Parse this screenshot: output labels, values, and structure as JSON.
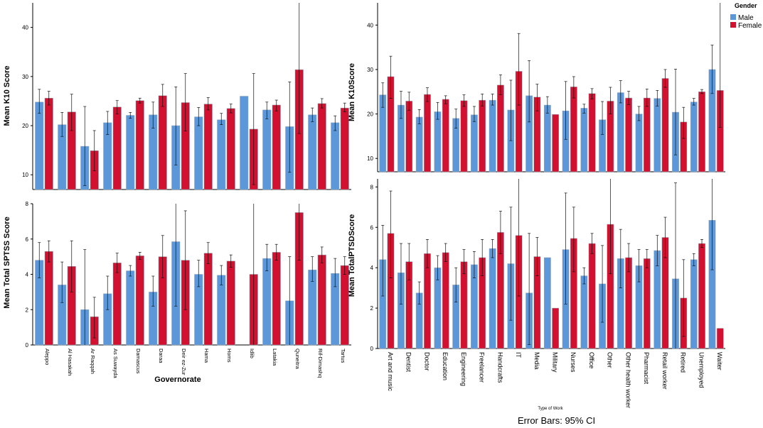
{
  "colors": {
    "male": "#5b97d9",
    "female": "#d2102f",
    "bar_border": "#9aa6b8",
    "axis": "#000000"
  },
  "legend": {
    "title": "Gender",
    "male": "Male",
    "female": "Female"
  },
  "footer": {
    "error_bars": "Error Bars: 95% CI"
  },
  "chart_data": [
    {
      "type": "bar",
      "id": "k10-governorate",
      "title": "",
      "ylabel": "Mean K10 Score",
      "xlabel": "",
      "ylim": [
        7,
        45
      ],
      "yticks": [
        10,
        20,
        30,
        40
      ],
      "categories": [
        "Aleppo",
        "Al Hasakah",
        "Ar Raqqah",
        "As Suwayda",
        "Damascus",
        "Daraa",
        "Deir ez-Zur",
        "Hama",
        "Homs",
        "Idlib",
        "Latakia",
        "Quneitra",
        "Rif-Dimashq",
        "Tartus"
      ],
      "series": [
        {
          "name": "Male",
          "values": [
            24.8,
            20.2,
            15.8,
            20.6,
            22.1,
            22.2,
            20.0,
            21.8,
            21.2,
            26.0,
            23.2,
            19.8,
            22.2,
            20.6
          ],
          "ci_low": [
            22.5,
            17.8,
            7.8,
            18.2,
            21.5,
            19.5,
            12.0,
            20.0,
            20.2,
            null,
            21.4,
            10.5,
            20.8,
            19.0
          ],
          "ci_high": [
            27.4,
            22.7,
            23.9,
            22.9,
            22.7,
            24.8,
            27.9,
            23.7,
            22.5,
            null,
            24.8,
            28.9,
            23.6,
            22.0
          ]
        },
        {
          "name": "Female",
          "values": [
            25.6,
            22.8,
            14.9,
            23.8,
            25.1,
            26.1,
            24.7,
            24.4,
            23.5,
            19.3,
            24.2,
            31.4,
            24.5,
            23.6
          ],
          "ci_low": [
            24.2,
            19.0,
            10.8,
            22.4,
            24.6,
            23.9,
            18.9,
            23.2,
            22.6,
            8.0,
            23.0,
            18.4,
            23.6,
            22.8
          ],
          "ci_high": [
            27.0,
            26.4,
            19.0,
            25.1,
            25.6,
            28.4,
            30.6,
            25.7,
            24.4,
            30.6,
            25.2,
            45.0,
            25.5,
            24.6
          ]
        }
      ]
    },
    {
      "type": "bar",
      "id": "sptss-governorate",
      "title": "",
      "ylabel": "Mean Total SPTSS Score",
      "xlabel": "Governorate",
      "ylim": [
        0,
        8
      ],
      "yticks": [
        0,
        2,
        4,
        6,
        8
      ],
      "categories": [
        "Aleppo",
        "Al Hasakah",
        "Ar Raqqah",
        "As Suwayda",
        "Damascus",
        "Daraa",
        "Deir ez-Zur",
        "Hama",
        "Homs",
        "Idlib",
        "Latakia",
        "Quneitra",
        "Rif-Dimashq",
        "Tartus"
      ],
      "series": [
        {
          "name": "Male",
          "values": [
            4.8,
            3.4,
            2.0,
            2.9,
            4.2,
            3.0,
            5.85,
            4.0,
            3.95,
            0,
            4.9,
            2.5,
            4.25,
            4.05
          ],
          "ci_low": [
            3.8,
            2.4,
            0,
            2.0,
            3.9,
            2.2,
            2.2,
            3.3,
            3.4,
            null,
            4.2,
            0,
            3.6,
            3.3
          ],
          "ci_high": [
            5.8,
            4.7,
            5.4,
            3.9,
            4.5,
            3.9,
            9.8,
            4.8,
            4.5,
            null,
            5.7,
            5.0,
            5.0,
            4.9
          ]
        },
        {
          "name": "Female",
          "values": [
            5.3,
            4.45,
            1.6,
            4.65,
            5.05,
            5.0,
            4.8,
            5.2,
            4.75,
            4.0,
            5.25,
            7.5,
            5.1,
            4.5
          ],
          "ci_low": [
            4.7,
            3.0,
            0.4,
            4.1,
            4.85,
            3.8,
            2.0,
            4.6,
            4.4,
            0,
            4.8,
            4.8,
            4.65,
            4.0
          ],
          "ci_high": [
            5.9,
            5.9,
            2.7,
            5.2,
            5.25,
            6.2,
            7.6,
            5.8,
            5.1,
            8.0,
            5.7,
            10.0,
            5.55,
            5.0
          ]
        }
      ]
    },
    {
      "type": "bar",
      "id": "k10-work",
      "title": "",
      "ylabel": "Mean K10Score",
      "xlabel": "",
      "ylim": [
        7,
        45
      ],
      "yticks": [
        10,
        20,
        30,
        40
      ],
      "categories": [
        "Art and music",
        "Dentist",
        "Doctor",
        "Education",
        "Engineering",
        "Freelancer",
        "Handcrafts",
        "IT",
        "Media",
        "Military",
        "Nurses",
        "Office",
        "Other",
        "Other health worker",
        "Pharmacist",
        "Retail worker",
        "Retired",
        "Unemployed",
        "Waiter"
      ],
      "series": [
        {
          "name": "Male",
          "values": [
            24.3,
            22.0,
            19.3,
            20.5,
            19.0,
            19.8,
            23.1,
            20.9,
            24.1,
            22.0,
            20.7,
            21.3,
            18.7,
            24.8,
            20.0,
            23.5,
            20.4,
            22.7,
            30.0
          ],
          "ci_low": [
            21.5,
            19.0,
            17.8,
            18.8,
            16.8,
            18.3,
            22.0,
            14.0,
            18.2,
            20.2,
            14.3,
            20.2,
            15.4,
            22.5,
            18.5,
            21.8,
            10.8,
            22.0,
            24.6
          ],
          "ci_high": [
            27.0,
            25.1,
            21.0,
            22.6,
            21.1,
            21.7,
            24.5,
            27.6,
            32.0,
            23.9,
            27.3,
            22.2,
            22.8,
            27.5,
            21.7,
            25.3,
            30.1,
            23.5,
            35.5
          ]
        },
        {
          "name": "Female",
          "values": [
            28.4,
            22.9,
            24.4,
            23.3,
            23.0,
            23.1,
            26.5,
            29.6,
            23.8,
            19.9,
            26.1,
            24.6,
            22.9,
            23.6,
            23.6,
            28.0,
            18.2,
            25.0,
            25.3
          ],
          "ci_low": [
            23.5,
            20.8,
            22.8,
            22.3,
            21.7,
            21.8,
            24.3,
            22.0,
            20.7,
            19.9,
            23.6,
            23.4,
            20.0,
            22.1,
            21.7,
            26.0,
            14.5,
            24.6,
            17.0
          ],
          "ci_high": [
            33.0,
            24.9,
            25.9,
            24.1,
            24.3,
            24.5,
            28.8,
            38.1,
            26.7,
            19.9,
            28.4,
            25.7,
            26.0,
            25.1,
            25.6,
            30.0,
            21.5,
            25.5,
            45.0
          ]
        }
      ]
    },
    {
      "type": "bar",
      "id": "ptsd-work",
      "title": "",
      "ylabel": "Mean TotalPTSDScore",
      "xlabel": "Type of Work",
      "ylim": [
        0,
        8.4
      ],
      "yticks": [
        0,
        2,
        4,
        6,
        8
      ],
      "categories": [
        "Art and music",
        "Dentist",
        "Doctor",
        "Education",
        "Engineering",
        "Freelancer",
        "Handcrafts",
        "IT",
        "Media",
        "Military",
        "Nurses",
        "Office",
        "Other",
        "Other health worker",
        "Pharmacist",
        "Retail worker",
        "Retired",
        "Unemployed",
        "Waiter"
      ],
      "series": [
        {
          "name": "Male",
          "values": [
            4.4,
            3.75,
            2.75,
            4.0,
            3.15,
            4.15,
            4.95,
            4.2,
            2.75,
            4.5,
            4.9,
            3.6,
            3.2,
            4.45,
            4.1,
            4.85,
            3.45,
            4.4,
            6.35
          ],
          "ci_low": [
            2.6,
            2.2,
            2.2,
            3.4,
            2.3,
            3.5,
            4.5,
            1.4,
            0.2,
            4.5,
            2.2,
            3.2,
            1.3,
            3.0,
            3.3,
            4.1,
            0,
            4.1,
            3.9
          ],
          "ci_high": [
            6.1,
            5.2,
            3.3,
            4.6,
            4.0,
            4.8,
            5.4,
            7.0,
            5.7,
            4.5,
            7.7,
            4.0,
            5.1,
            5.9,
            4.9,
            5.6,
            8.2,
            4.7,
            8.4
          ]
        },
        {
          "name": "Female",
          "values": [
            5.7,
            4.3,
            4.7,
            4.75,
            4.3,
            4.5,
            5.75,
            5.6,
            4.55,
            2.0,
            5.45,
            5.2,
            6.15,
            4.5,
            4.45,
            5.5,
            2.5,
            5.2,
            1.0
          ],
          "ci_low": [
            3.5,
            3.4,
            4.0,
            4.3,
            3.7,
            3.6,
            4.7,
            2.6,
            3.6,
            2.0,
            3.8,
            4.7,
            3.7,
            3.8,
            4.0,
            4.5,
            0.6,
            5.0,
            1.0
          ],
          "ci_high": [
            7.8,
            5.2,
            5.4,
            5.2,
            4.9,
            5.4,
            6.8,
            8.4,
            5.5,
            2.0,
            7.0,
            5.7,
            8.4,
            5.2,
            4.9,
            6.5,
            4.4,
            5.4,
            1.0
          ]
        }
      ]
    }
  ]
}
